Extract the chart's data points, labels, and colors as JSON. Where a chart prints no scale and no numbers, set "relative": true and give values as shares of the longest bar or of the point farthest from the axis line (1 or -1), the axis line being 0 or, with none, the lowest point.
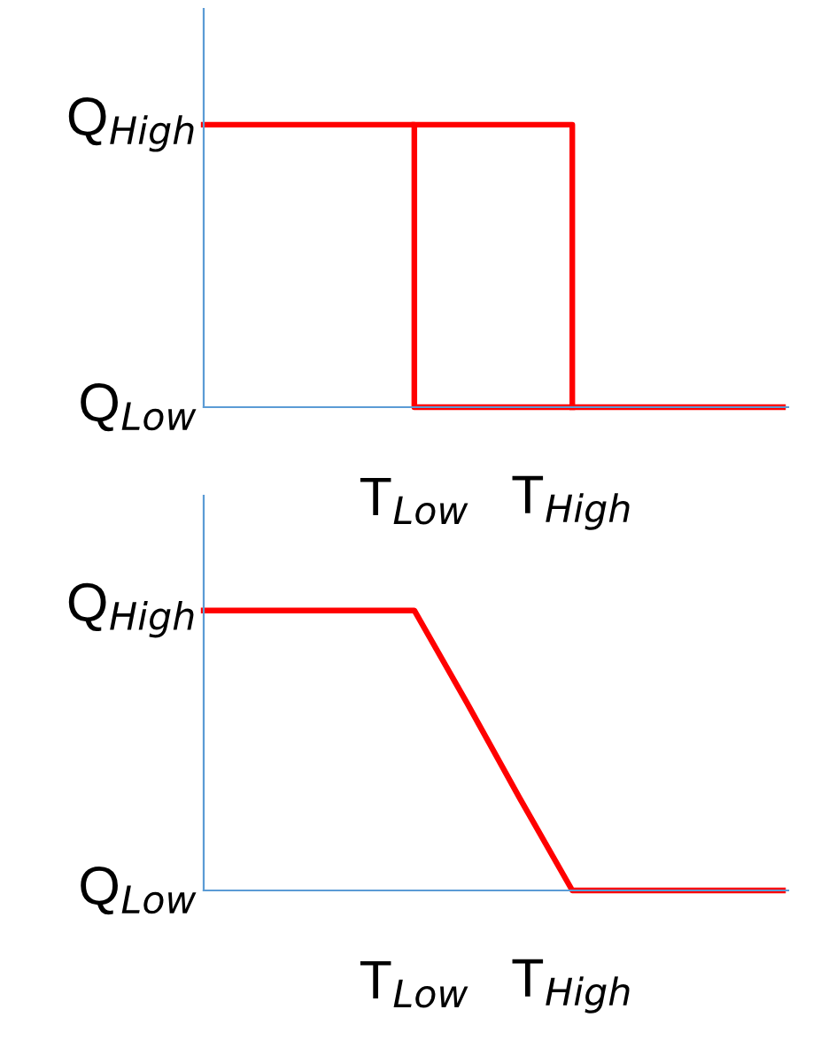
{
  "chart_data": [
    {
      "type": "step",
      "relative": true,
      "categories": [
        null,
        null,
        null,
        null,
        "T$_{Low}$",
        null,
        null,
        "T$_{High}$",
        null,
        null,
        null,
        null
      ],
      "annotations": [
        "Q$_{High}$",
        "Q$_{Low}$"
      ],
      "line_style": "solid",
      "series": [
        {
          "color": "#ff0000",
          "values": [
            1,
            1,
            1,
            1,
            0,
            0,
            0,
            0,
            0,
            0,
            0,
            0
          ]
        },
        {
          "color": "#ff0000",
          "values": [
            null,
            null,
            null,
            null,
            1,
            1,
            1,
            0,
            null,
            null,
            null,
            null
          ]
        }
      ]
    },
    {
      "type": "line",
      "relative": true,
      "categories": [
        null,
        null,
        null,
        null,
        "T$_{Low}$",
        null,
        null,
        "T$_{High}$",
        null,
        null,
        null,
        null
      ],
      "annotations": [
        "Q$_{High}$",
        "Q$_{Low}$"
      ],
      "line_style": "solid",
      "series": [
        {
          "color": "#ff0000",
          "values": [
            1,
            1,
            1,
            1,
            1,
            0.67,
            0.33,
            0,
            0,
            0,
            0,
            0
          ]
        }
      ]
    }
  ]
}
